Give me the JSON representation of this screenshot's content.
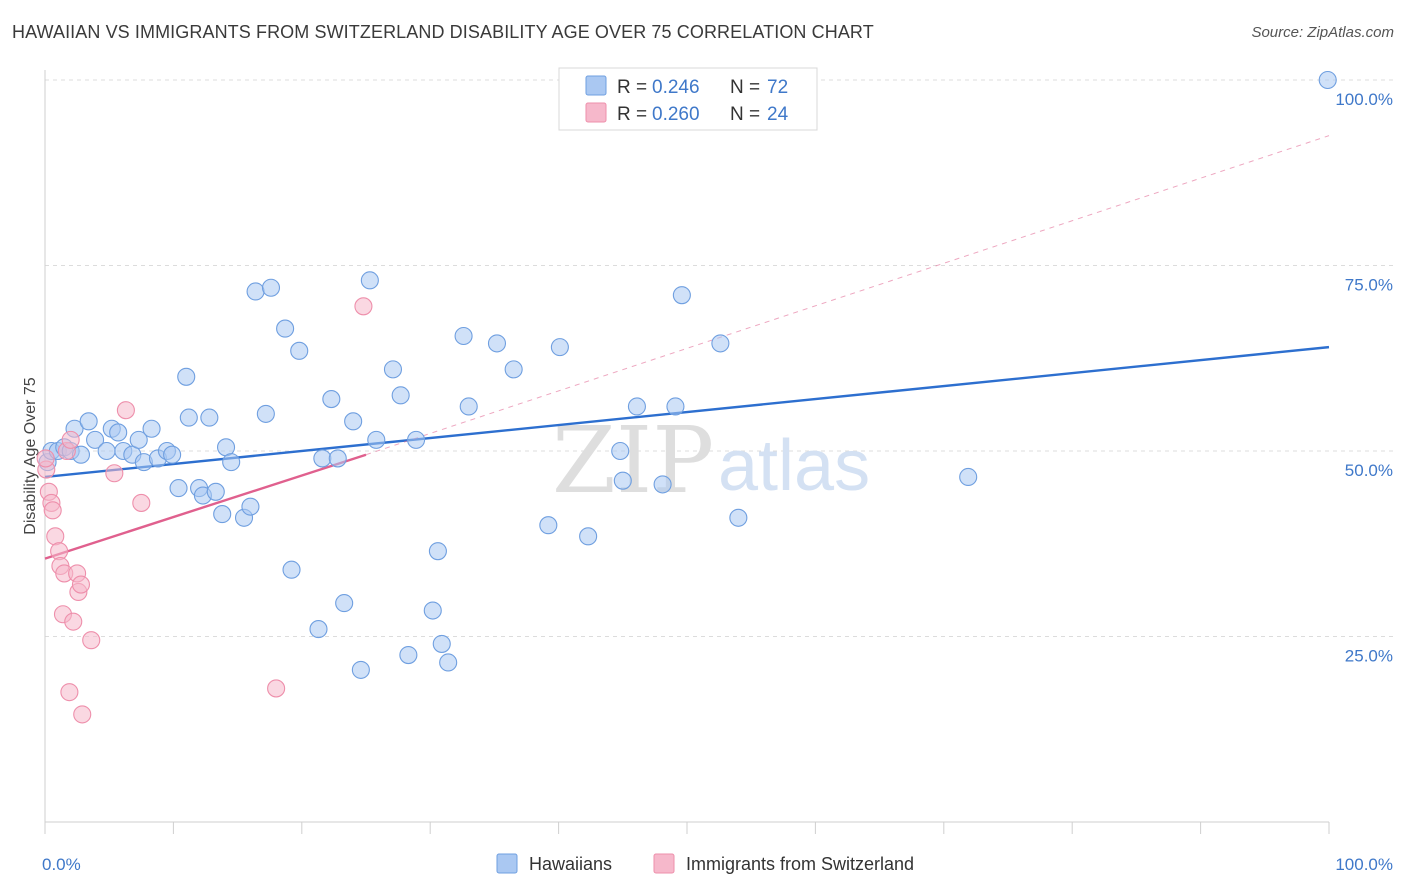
{
  "header": {
    "title": "HAWAIIAN VS IMMIGRANTS FROM SWITZERLAND DISABILITY AGE OVER 75 CORRELATION CHART",
    "source": "Source: ZipAtlas.com"
  },
  "watermark": {
    "zip": "ZIP",
    "atlas": "atlas"
  },
  "legend": {
    "r_label": "R =",
    "n_label": "N =",
    "rows": [
      {
        "r": "0.246",
        "n": "72",
        "color": "#aac8f2"
      },
      {
        "r": "0.260",
        "n": "24",
        "color": "#f6b8cb"
      }
    ]
  },
  "bottom_legend": [
    "Hawaiians",
    "Immigrants from Switzerland"
  ],
  "chart_data": {
    "type": "scatter",
    "ylabel": "Disability Age Over 75",
    "xlim": [
      0,
      100
    ],
    "ylim": [
      0,
      100
    ],
    "x_tick_labels": [
      "0.0%",
      "100.0%"
    ],
    "y_tick_labels": [
      "100.0%",
      "75.0%",
      "50.0%",
      "25.0%"
    ],
    "y_ticks": [
      100,
      75,
      50,
      25
    ],
    "grid": "dashed horizontal",
    "legend_position": "top-center",
    "series": [
      {
        "name": "Hawaiians",
        "color": "#6f9fe0",
        "fill": "#aac8f2",
        "line_color": "#2d6fcf",
        "trend": [
          [
            0,
            46.5
          ],
          [
            100,
            64
          ]
        ],
        "points": [
          [
            0.2,
            48.5
          ],
          [
            0.5,
            50
          ],
          [
            1.0,
            50
          ],
          [
            1.5,
            50.5
          ],
          [
            2,
            50
          ],
          [
            2.3,
            53
          ],
          [
            2.8,
            49.5
          ],
          [
            3.4,
            54
          ],
          [
            3.9,
            51.5
          ],
          [
            4.8,
            50
          ],
          [
            5.2,
            53
          ],
          [
            5.7,
            52.5
          ],
          [
            6.1,
            50
          ],
          [
            6.8,
            49.5
          ],
          [
            7.3,
            51.5
          ],
          [
            7.7,
            48.5
          ],
          [
            8.3,
            53
          ],
          [
            8.8,
            49
          ],
          [
            9.5,
            50
          ],
          [
            9.9,
            49.5
          ],
          [
            10.4,
            45
          ],
          [
            11,
            60
          ],
          [
            11.2,
            54.5
          ],
          [
            12,
            45
          ],
          [
            12.3,
            44
          ],
          [
            12.8,
            54.5
          ],
          [
            13.3,
            44.5
          ],
          [
            13.8,
            41.5
          ],
          [
            14.1,
            50.5
          ],
          [
            14.5,
            48.5
          ],
          [
            15.5,
            41
          ],
          [
            16,
            42.5
          ],
          [
            16.4,
            71.5
          ],
          [
            17.2,
            55
          ],
          [
            17.6,
            72
          ],
          [
            18.7,
            66.5
          ],
          [
            19.2,
            34
          ],
          [
            19.8,
            63.5
          ],
          [
            21.3,
            26
          ],
          [
            21.6,
            49
          ],
          [
            22.3,
            57
          ],
          [
            22.8,
            49
          ],
          [
            23.3,
            29.5
          ],
          [
            24,
            54
          ],
          [
            24.6,
            20.5
          ],
          [
            25.3,
            73
          ],
          [
            25.8,
            51.5
          ],
          [
            27.1,
            61
          ],
          [
            27.7,
            57.5
          ],
          [
            28.3,
            22.5
          ],
          [
            28.9,
            51.5
          ],
          [
            30.2,
            28.5
          ],
          [
            30.6,
            36.5
          ],
          [
            30.9,
            24
          ],
          [
            31.4,
            21.5
          ],
          [
            32.6,
            65.5
          ],
          [
            33,
            56
          ],
          [
            35.2,
            64.5
          ],
          [
            36.5,
            61
          ],
          [
            39.2,
            40
          ],
          [
            40.1,
            64
          ],
          [
            42.3,
            38.5
          ],
          [
            44.8,
            50
          ],
          [
            45,
            46
          ],
          [
            46.1,
            56
          ],
          [
            48.1,
            45.5
          ],
          [
            49.1,
            56
          ],
          [
            49.6,
            71
          ],
          [
            52.6,
            64.5
          ],
          [
            54,
            41
          ],
          [
            71.9,
            46.5
          ],
          [
            99.9,
            100
          ]
        ]
      },
      {
        "name": "Immigrants from Switzerland",
        "color": "#ee8fab",
        "fill": "#f6b8cb",
        "line_color": "#e0608e",
        "trend": [
          [
            0,
            35.5
          ],
          [
            25,
            49.5
          ]
        ],
        "trend_extension": [
          [
            25,
            49.5
          ],
          [
            100,
            92.5
          ]
        ],
        "points": [
          [
            0.1,
            47.5
          ],
          [
            0.3,
            44.5
          ],
          [
            0.5,
            43
          ],
          [
            0.6,
            42
          ],
          [
            0.8,
            38.5
          ],
          [
            1.1,
            36.5
          ],
          [
            1.2,
            34.5
          ],
          [
            1.5,
            33.5
          ],
          [
            1.7,
            50
          ],
          [
            1.4,
            28
          ],
          [
            1.9,
            17.5
          ],
          [
            2,
            51.5
          ],
          [
            2.2,
            27
          ],
          [
            2.5,
            33.5
          ],
          [
            2.6,
            31
          ],
          [
            2.8,
            32
          ],
          [
            2.9,
            14.5
          ],
          [
            3.6,
            24.5
          ],
          [
            5.4,
            47
          ],
          [
            6.3,
            55.5
          ],
          [
            7.5,
            43
          ],
          [
            18,
            18
          ],
          [
            24.8,
            69.5
          ],
          [
            0.05,
            49
          ]
        ]
      }
    ]
  }
}
